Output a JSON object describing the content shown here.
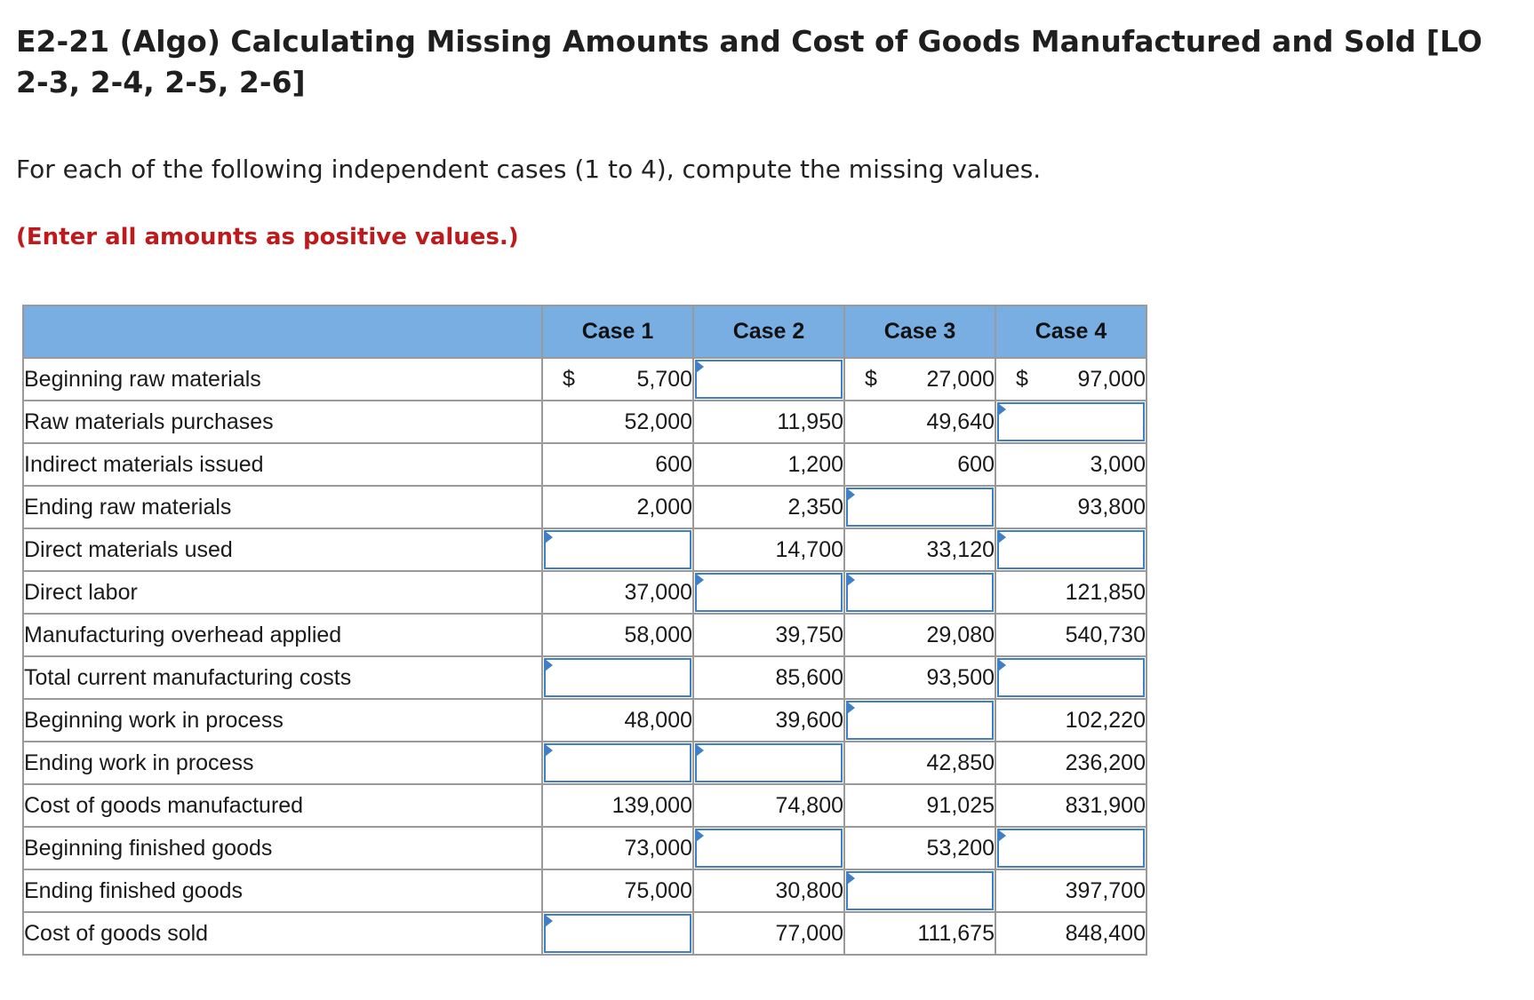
{
  "header": {
    "title": "E2-21 (Algo) Calculating Missing Amounts and Cost of Goods Manufactured and Sold [LO 2-3, 2-4, 2-5, 2-6]",
    "intro": "For each of the following independent cases (1 to 4), compute the missing values.",
    "note": "(Enter all amounts as positive values.)"
  },
  "table": {
    "columns": [
      "",
      "Case 1",
      "Case 2",
      "Case 3",
      "Case 4"
    ],
    "rows": [
      {
        "label": "Beginning raw materials",
        "cells": [
          {
            "value": "5,700",
            "dollar": "$"
          },
          {
            "input": true
          },
          {
            "value": "27,000",
            "dollar": "$"
          },
          {
            "value": "97,000",
            "dollar": "$"
          }
        ]
      },
      {
        "label": "Raw materials purchases",
        "cells": [
          {
            "value": "52,000"
          },
          {
            "value": "11,950"
          },
          {
            "value": "49,640"
          },
          {
            "input": true
          }
        ]
      },
      {
        "label": "Indirect materials issued",
        "cells": [
          {
            "value": "600"
          },
          {
            "value": "1,200"
          },
          {
            "value": "600"
          },
          {
            "value": "3,000"
          }
        ]
      },
      {
        "label": "Ending raw materials",
        "cells": [
          {
            "value": "2,000"
          },
          {
            "value": "2,350"
          },
          {
            "input": true
          },
          {
            "value": "93,800"
          }
        ]
      },
      {
        "label": "Direct materials used",
        "cells": [
          {
            "input": true
          },
          {
            "value": "14,700"
          },
          {
            "value": "33,120"
          },
          {
            "input": true
          }
        ]
      },
      {
        "label": "Direct labor",
        "cells": [
          {
            "value": "37,000"
          },
          {
            "input": true
          },
          {
            "input": true
          },
          {
            "value": "121,850"
          }
        ]
      },
      {
        "label": "Manufacturing overhead applied",
        "cells": [
          {
            "value": "58,000"
          },
          {
            "value": "39,750"
          },
          {
            "value": "29,080"
          },
          {
            "value": "540,730"
          }
        ]
      },
      {
        "label": "Total current manufacturing costs",
        "cells": [
          {
            "input": true
          },
          {
            "value": "85,600"
          },
          {
            "value": "93,500"
          },
          {
            "input": true
          }
        ]
      },
      {
        "label": "Beginning work in process",
        "cells": [
          {
            "value": "48,000"
          },
          {
            "value": "39,600"
          },
          {
            "input": true
          },
          {
            "value": "102,220"
          }
        ]
      },
      {
        "label": "Ending work in process",
        "cells": [
          {
            "input": true
          },
          {
            "input": true
          },
          {
            "value": "42,850"
          },
          {
            "value": "236,200"
          }
        ]
      },
      {
        "label": "Cost of goods manufactured",
        "cells": [
          {
            "value": "139,000"
          },
          {
            "value": "74,800"
          },
          {
            "value": "91,025"
          },
          {
            "value": "831,900"
          }
        ]
      },
      {
        "label": "Beginning finished goods",
        "cells": [
          {
            "value": "73,000"
          },
          {
            "input": true
          },
          {
            "value": "53,200"
          },
          {
            "input": true
          }
        ]
      },
      {
        "label": "Ending finished goods",
        "cells": [
          {
            "value": "75,000"
          },
          {
            "value": "30,800"
          },
          {
            "input": true
          },
          {
            "value": "397,700"
          }
        ]
      },
      {
        "label": "Cost of goods sold",
        "cells": [
          {
            "input": true
          },
          {
            "value": "77,000"
          },
          {
            "value": "111,675"
          },
          {
            "value": "848,400"
          }
        ]
      }
    ]
  },
  "colors": {
    "header_bg": "#79aee3",
    "note_red": "#c0191c",
    "input_border": "#3f7fc7"
  }
}
